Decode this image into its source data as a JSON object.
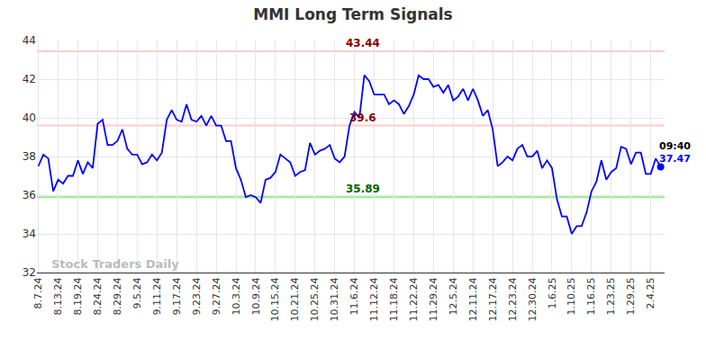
{
  "chart_data": {
    "type": "line",
    "title": "MMI Long Term Signals",
    "categories": [
      "8.7.24",
      null,
      null,
      null,
      "8.13.24",
      null,
      null,
      null,
      "8.19.24",
      null,
      null,
      null,
      "8.24.24",
      null,
      null,
      null,
      "8.29.24",
      null,
      null,
      null,
      "9.5.24",
      null,
      null,
      null,
      "9.11.24",
      null,
      null,
      null,
      "9.17.24",
      null,
      null,
      null,
      "9.23.24",
      null,
      null,
      null,
      "9.27.24",
      null,
      null,
      null,
      "10.3.24",
      null,
      null,
      null,
      "10.9.24",
      null,
      null,
      null,
      "10.15.24",
      null,
      null,
      null,
      "10.21.24",
      null,
      null,
      null,
      "10.25.24",
      null,
      null,
      null,
      "10.31.24",
      null,
      null,
      null,
      "11.6.24",
      null,
      null,
      null,
      "11.12.24",
      null,
      null,
      null,
      "11.18.24",
      null,
      null,
      null,
      "11.22.24",
      null,
      null,
      null,
      "11.29.24",
      null,
      null,
      null,
      "12.5.24",
      null,
      null,
      null,
      "12.11.24",
      null,
      null,
      null,
      "12.17.24",
      null,
      null,
      null,
      "12.23.24",
      null,
      null,
      null,
      "12.30.24",
      null,
      null,
      null,
      "1.6.25",
      null,
      null,
      null,
      "1.10.25",
      null,
      null,
      null,
      "1.16.25",
      null,
      null,
      null,
      "1.23.25",
      null,
      null,
      null,
      "1.29.25",
      null,
      null,
      null,
      "2.4.25",
      null,
      null
    ],
    "series": [
      {
        "name": "MMI",
        "color": "#0000ff",
        "values": [
          37.5,
          38.1,
          37.9,
          36.2,
          36.8,
          36.6,
          37.0,
          37.0,
          37.8,
          37.1,
          37.7,
          37.4,
          39.7,
          39.9,
          38.6,
          38.6,
          38.8,
          39.4,
          38.4,
          38.1,
          38.1,
          37.6,
          37.7,
          38.1,
          37.8,
          38.2,
          39.9,
          40.4,
          39.9,
          39.8,
          40.7,
          39.9,
          39.8,
          40.1,
          39.6,
          40.1,
          39.6,
          39.6,
          38.8,
          38.8,
          37.4,
          36.8,
          35.9,
          36.0,
          35.9,
          35.6,
          36.8,
          36.9,
          37.2,
          38.1,
          37.9,
          37.7,
          37.0,
          37.2,
          37.3,
          38.7,
          38.1,
          38.3,
          38.4,
          38.6,
          37.9,
          37.7,
          38.0,
          39.6,
          40.3,
          40.0,
          42.2,
          41.9,
          41.2,
          41.2,
          41.2,
          40.7,
          40.9,
          40.7,
          40.2,
          40.6,
          41.2,
          42.2,
          42.0,
          42.0,
          41.6,
          41.7,
          41.3,
          41.7,
          40.9,
          41.1,
          41.5,
          40.9,
          41.5,
          40.9,
          40.1,
          40.4,
          39.4,
          37.5,
          37.7,
          38.0,
          37.8,
          38.4,
          38.6,
          38.0,
          38.0,
          38.3,
          37.4,
          37.8,
          37.4,
          35.8,
          34.9,
          34.9,
          34.0,
          34.4,
          34.4,
          35.1,
          36.2,
          36.7,
          37.8,
          36.8,
          37.2,
          37.4,
          38.5,
          38.4,
          37.6,
          38.2,
          38.2,
          37.1,
          37.1,
          37.9,
          37.47
        ]
      }
    ],
    "ylim": [
      32,
      44
    ],
    "yticks": [
      32,
      34,
      36,
      38,
      40,
      42,
      44
    ],
    "grid": true,
    "signal_lines": [
      {
        "value": 43.44,
        "color": "#ffcccc",
        "label_color": "#8b0000"
      },
      {
        "value": 39.6,
        "color": "#ffcccc",
        "label_color": "#8b0000"
      },
      {
        "value": 35.89,
        "color": "#90ee90",
        "label_color": "#006400"
      }
    ],
    "last_point_time": "09:40",
    "last_point_label": "37.47",
    "watermark": "Stock Traders Daily"
  }
}
